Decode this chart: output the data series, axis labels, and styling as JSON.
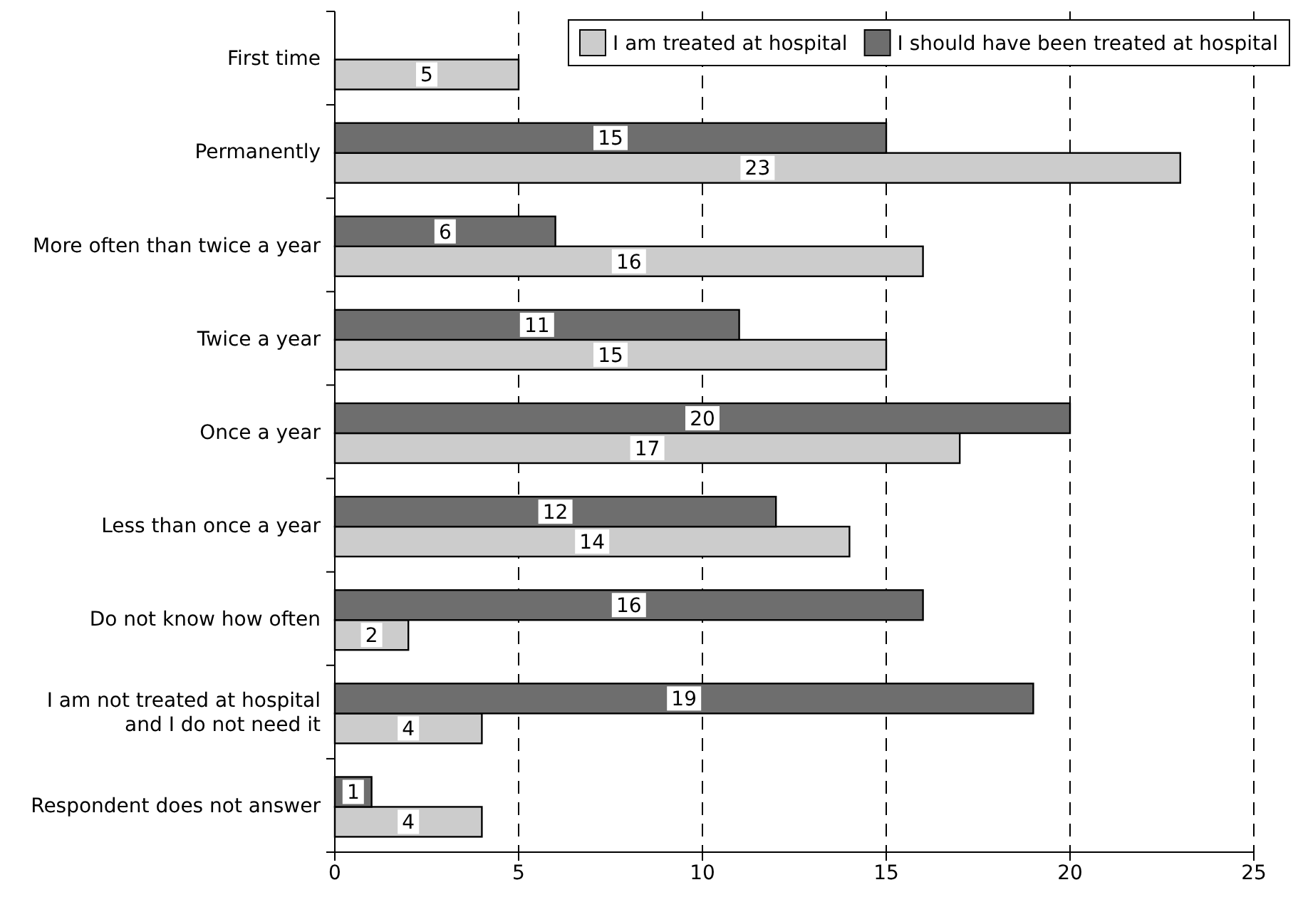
{
  "chart_data": {
    "type": "bar",
    "orientation": "horizontal",
    "categories": [
      "First time",
      "Permanently",
      "More often than twice a year",
      "Twice a year",
      "Once a year",
      "Less than once a year",
      "Do not know how often",
      "I am not treated at hospital\nand I do not need it",
      "Respondent does not answer"
    ],
    "series": [
      {
        "name": "I am treated at hospital",
        "color": "#cccccc",
        "values": [
          5,
          23,
          16,
          15,
          17,
          14,
          2,
          4,
          4
        ]
      },
      {
        "name": "I should have been treated at hospital",
        "color": "#6e6e6e",
        "values": [
          null,
          15,
          6,
          11,
          20,
          12,
          16,
          19,
          1
        ]
      }
    ],
    "xlim": [
      0,
      25
    ],
    "xticks": [
      0,
      5,
      10,
      15,
      20,
      25
    ],
    "grid": "x",
    "legend": "top right",
    "data_labels": true
  }
}
